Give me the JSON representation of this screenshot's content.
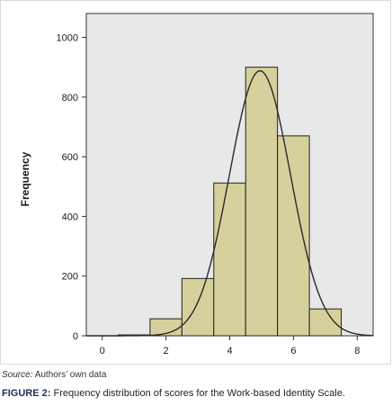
{
  "figure": {
    "source_label": "Source:",
    "source_text": "Authors’ own data",
    "caption_label": "FIGURE 2:",
    "caption_text": "Frequency distribution of scores for the Work-based Identity Scale."
  },
  "colors": {
    "bar_fill": "#d6d09c",
    "plot_background": "#e8e8e8",
    "curve": "#2a2a2a"
  },
  "chart_data": {
    "type": "bar",
    "subtype": "histogram with normal curve overlay",
    "title": "",
    "xlabel": "",
    "ylabel": "Frequency",
    "xlim": [
      -0.5,
      8.5
    ],
    "ylim": [
      0,
      1080
    ],
    "xticks": [
      0,
      2,
      4,
      6,
      8
    ],
    "yticks": [
      0,
      200,
      400,
      600,
      800,
      1000
    ],
    "bins": [
      {
        "from": 0.5,
        "to": 1.5,
        "value": 3
      },
      {
        "from": 1.5,
        "to": 2.5,
        "value": 57
      },
      {
        "from": 2.5,
        "to": 3.5,
        "value": 192
      },
      {
        "from": 3.5,
        "to": 4.5,
        "value": 512
      },
      {
        "from": 4.5,
        "to": 5.5,
        "value": 900
      },
      {
        "from": 5.5,
        "to": 6.5,
        "value": 670
      },
      {
        "from": 6.5,
        "to": 7.5,
        "value": 90
      }
    ],
    "normal_curve": {
      "mean": 4.95,
      "sd": 0.96,
      "peak": 888
    },
    "grid": false,
    "legend": "none"
  }
}
